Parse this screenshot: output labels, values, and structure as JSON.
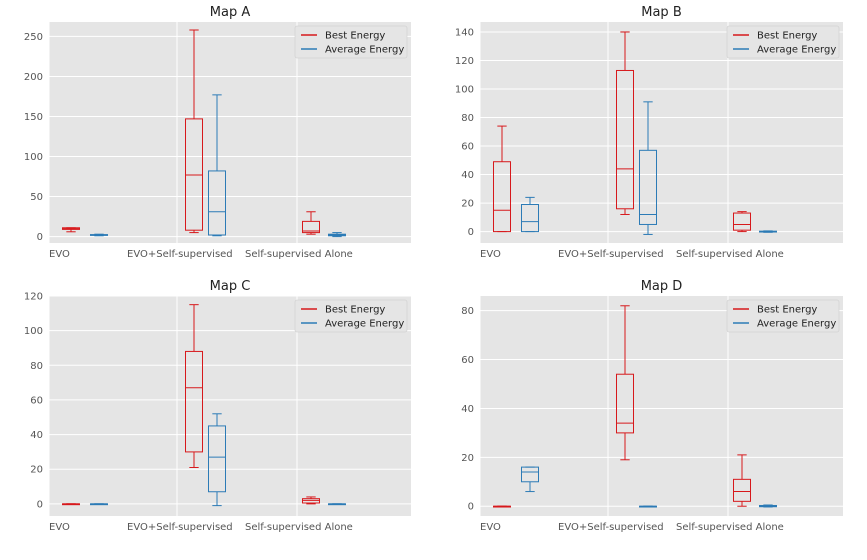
{
  "colors": {
    "best": "#d7191c",
    "average": "#2c7bb6",
    "panel_bg": "#e5e5e5",
    "grid": "#ffffff"
  },
  "chart_data": [
    {
      "type": "boxplot",
      "title": "Map A",
      "categories": [
        "EVO",
        "EVO+Self-supervised",
        "Self-supervised Alone"
      ],
      "ylim": [
        -8,
        268
      ],
      "yticks": [
        0,
        50,
        100,
        150,
        200,
        250
      ],
      "legend": {
        "position": "top-right",
        "entries": [
          "Best Energy",
          "Average Energy"
        ]
      },
      "series": [
        {
          "name": "Best Energy",
          "color": "#d7191c",
          "boxes": [
            {
              "whislo": 6,
              "q1": 9,
              "med": 10,
              "q3": 11,
              "whishi": 11
            },
            {
              "whislo": 5,
              "q1": 8,
              "med": 77,
              "q3": 147,
              "whishi": 258
            },
            {
              "whislo": 3,
              "q1": 5,
              "med": 7,
              "q3": 19,
              "whishi": 31
            }
          ]
        },
        {
          "name": "Average Energy",
          "color": "#2c7bb6",
          "boxes": [
            {
              "whislo": 1,
              "q1": 1.5,
              "med": 2,
              "q3": 2.5,
              "whishi": 3
            },
            {
              "whislo": 1,
              "q1": 2,
              "med": 31,
              "q3": 82,
              "whishi": 177
            },
            {
              "whislo": 0,
              "q1": 1,
              "med": 2,
              "q3": 3,
              "whishi": 5
            }
          ]
        }
      ]
    },
    {
      "type": "boxplot",
      "title": "Map B",
      "categories": [
        "EVO",
        "EVO+Self-supervised",
        "Self-supervised Alone"
      ],
      "ylim": [
        -8,
        147
      ],
      "yticks": [
        0,
        20,
        40,
        60,
        80,
        100,
        120,
        140
      ],
      "legend": {
        "position": "top-right",
        "entries": [
          "Best Energy",
          "Average Energy"
        ]
      },
      "series": [
        {
          "name": "Best Energy",
          "color": "#d7191c",
          "boxes": [
            {
              "whislo": 0,
              "q1": 0,
              "med": 15,
              "q3": 49,
              "whishi": 74
            },
            {
              "whislo": 12,
              "q1": 16,
              "med": 44,
              "q3": 113,
              "whishi": 140
            },
            {
              "whislo": 0,
              "q1": 1,
              "med": 5,
              "q3": 13,
              "whishi": 14
            }
          ]
        },
        {
          "name": "Average Energy",
          "color": "#2c7bb6",
          "boxes": [
            {
              "whislo": 0,
              "q1": 0,
              "med": 7,
              "q3": 19,
              "whishi": 24
            },
            {
              "whislo": -2,
              "q1": 5,
              "med": 12,
              "q3": 57,
              "whishi": 91
            },
            {
              "whislo": -0.5,
              "q1": -0.3,
              "med": 0,
              "q3": 0.3,
              "whishi": 0.5
            }
          ]
        }
      ]
    },
    {
      "type": "boxplot",
      "title": "Map C",
      "categories": [
        "EVO",
        "EVO+Self-supervised",
        "Self-supervised Alone"
      ],
      "ylim": [
        -7,
        120
      ],
      "yticks": [
        0,
        20,
        40,
        60,
        80,
        100,
        120
      ],
      "legend": {
        "position": "top-right",
        "entries": [
          "Best Energy",
          "Average Energy"
        ]
      },
      "series": [
        {
          "name": "Best Energy",
          "color": "#d7191c",
          "boxes": [
            {
              "whislo": 0,
              "q1": 0,
              "med": 0,
              "q3": 0,
              "whishi": 0
            },
            {
              "whislo": 21,
              "q1": 30,
              "med": 67,
              "q3": 88,
              "whishi": 115
            },
            {
              "whislo": 0,
              "q1": 0.5,
              "med": 2,
              "q3": 3,
              "whishi": 4
            }
          ]
        },
        {
          "name": "Average Energy",
          "color": "#2c7bb6",
          "boxes": [
            {
              "whislo": 0,
              "q1": 0,
              "med": 0,
              "q3": 0,
              "whishi": 0
            },
            {
              "whislo": -1,
              "q1": 7,
              "med": 27,
              "q3": 45,
              "whishi": 52
            },
            {
              "whislo": 0,
              "q1": 0,
              "med": 0,
              "q3": 0,
              "whishi": 0
            }
          ]
        }
      ]
    },
    {
      "type": "boxplot",
      "title": "Map D",
      "categories": [
        "EVO",
        "EVO+Self-supervised",
        "Self-supervised Alone"
      ],
      "ylim": [
        -4,
        86
      ],
      "yticks": [
        0,
        20,
        40,
        60,
        80
      ],
      "legend": {
        "position": "top-right",
        "entries": [
          "Best Energy",
          "Average Energy"
        ]
      },
      "series": [
        {
          "name": "Best Energy",
          "color": "#d7191c",
          "boxes": [
            {
              "whislo": 0,
              "q1": 0,
              "med": 0,
              "q3": 0,
              "whishi": 0
            },
            {
              "whislo": 19,
              "q1": 30,
              "med": 34,
              "q3": 54,
              "whishi": 82
            },
            {
              "whislo": 0,
              "q1": 2,
              "med": 6,
              "q3": 11,
              "whishi": 21
            }
          ]
        },
        {
          "name": "Average Energy",
          "color": "#2c7bb6",
          "boxes": [
            {
              "whislo": 6,
              "q1": 10,
              "med": 14,
              "q3": 16,
              "whishi": 16
            },
            {
              "whislo": 0,
              "q1": 0,
              "med": 0,
              "q3": 0,
              "whishi": 0
            },
            {
              "whislo": -0.3,
              "q1": -0.2,
              "med": 0,
              "q3": 0.3,
              "whishi": 0.5
            }
          ]
        }
      ]
    }
  ]
}
